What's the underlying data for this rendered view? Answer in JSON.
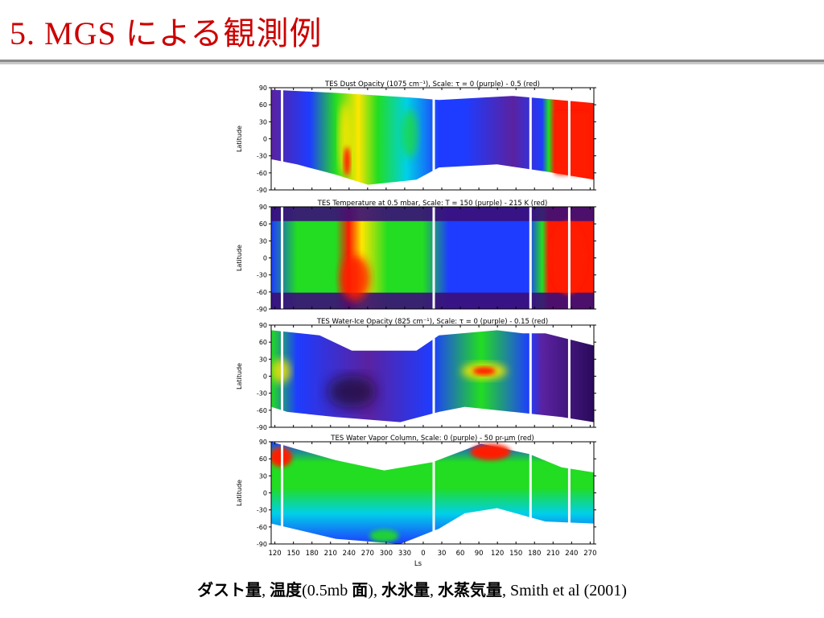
{
  "slide": {
    "title": "5. MGS による観測例"
  },
  "caption": {
    "segments": [
      {
        "text": "ダスト量",
        "style": "jp"
      },
      {
        "text": ", ",
        "style": "lat"
      },
      {
        "text": "温度",
        "style": "jp"
      },
      {
        "text": "(0.5mb ",
        "style": "lat"
      },
      {
        "text": "面",
        "style": "jp"
      },
      {
        "text": "), ",
        "style": "lat"
      },
      {
        "text": "水氷量",
        "style": "jp"
      },
      {
        "text": ", ",
        "style": "lat"
      },
      {
        "text": "水蒸気量",
        "style": "jp"
      },
      {
        "text": ", Smith et al (2001)",
        "style": "lat"
      }
    ]
  },
  "chart_data": {
    "type": "heatmap",
    "shared_x": {
      "label": "Ls",
      "ticks": [
        "120",
        "150",
        "180",
        "210",
        "240",
        "270",
        "300",
        "330",
        "0",
        "30",
        "60",
        "90",
        "120",
        "150",
        "180",
        "210",
        "240",
        "270"
      ]
    },
    "colors": {
      "purple": "#5a22a0",
      "blue": "#1e3cff",
      "cyan": "#00d0e8",
      "green": "#22dd22",
      "yellow": "#ffe600",
      "red": "#ff1a00"
    },
    "panels": [
      {
        "id": "dust",
        "title": "TES Dust Opacity (1075 cm⁻¹),  Scale: τ = 0 (purple) - 0.5 (red)",
        "ylabel": "Latitude",
        "yticks": [
          "90",
          "60",
          "30",
          "0",
          "-30",
          "-60",
          "-90"
        ],
        "ylim": [
          -90,
          90
        ]
      },
      {
        "id": "temperature",
        "title": "TES Temperature at 0.5 mbar,  Scale: T = 150 (purple) - 215 K (red)",
        "ylabel": "Latitude",
        "yticks": [
          "90",
          "60",
          "30",
          "0",
          "-30",
          "-60",
          "-90"
        ],
        "ylim": [
          -90,
          90
        ]
      },
      {
        "id": "water-ice",
        "title": "TES Water-Ice Opacity (825 cm⁻¹),  Scale: τ = 0 (purple) - 0.15 (red)",
        "ylabel": "Latitude",
        "yticks": [
          "90",
          "60",
          "30",
          "0",
          "-30",
          "-60",
          "-90"
        ],
        "ylim": [
          -90,
          90
        ]
      },
      {
        "id": "water-vapor",
        "title": "TES Water Vapor Column,  Scale: 0 (purple) - 50 pr-µm (red)",
        "ylabel": "Latitude",
        "yticks": [
          "90",
          "60",
          "30",
          "0",
          "-30",
          "-60",
          "-90"
        ],
        "ylim": [
          -90,
          90
        ]
      }
    ]
  }
}
